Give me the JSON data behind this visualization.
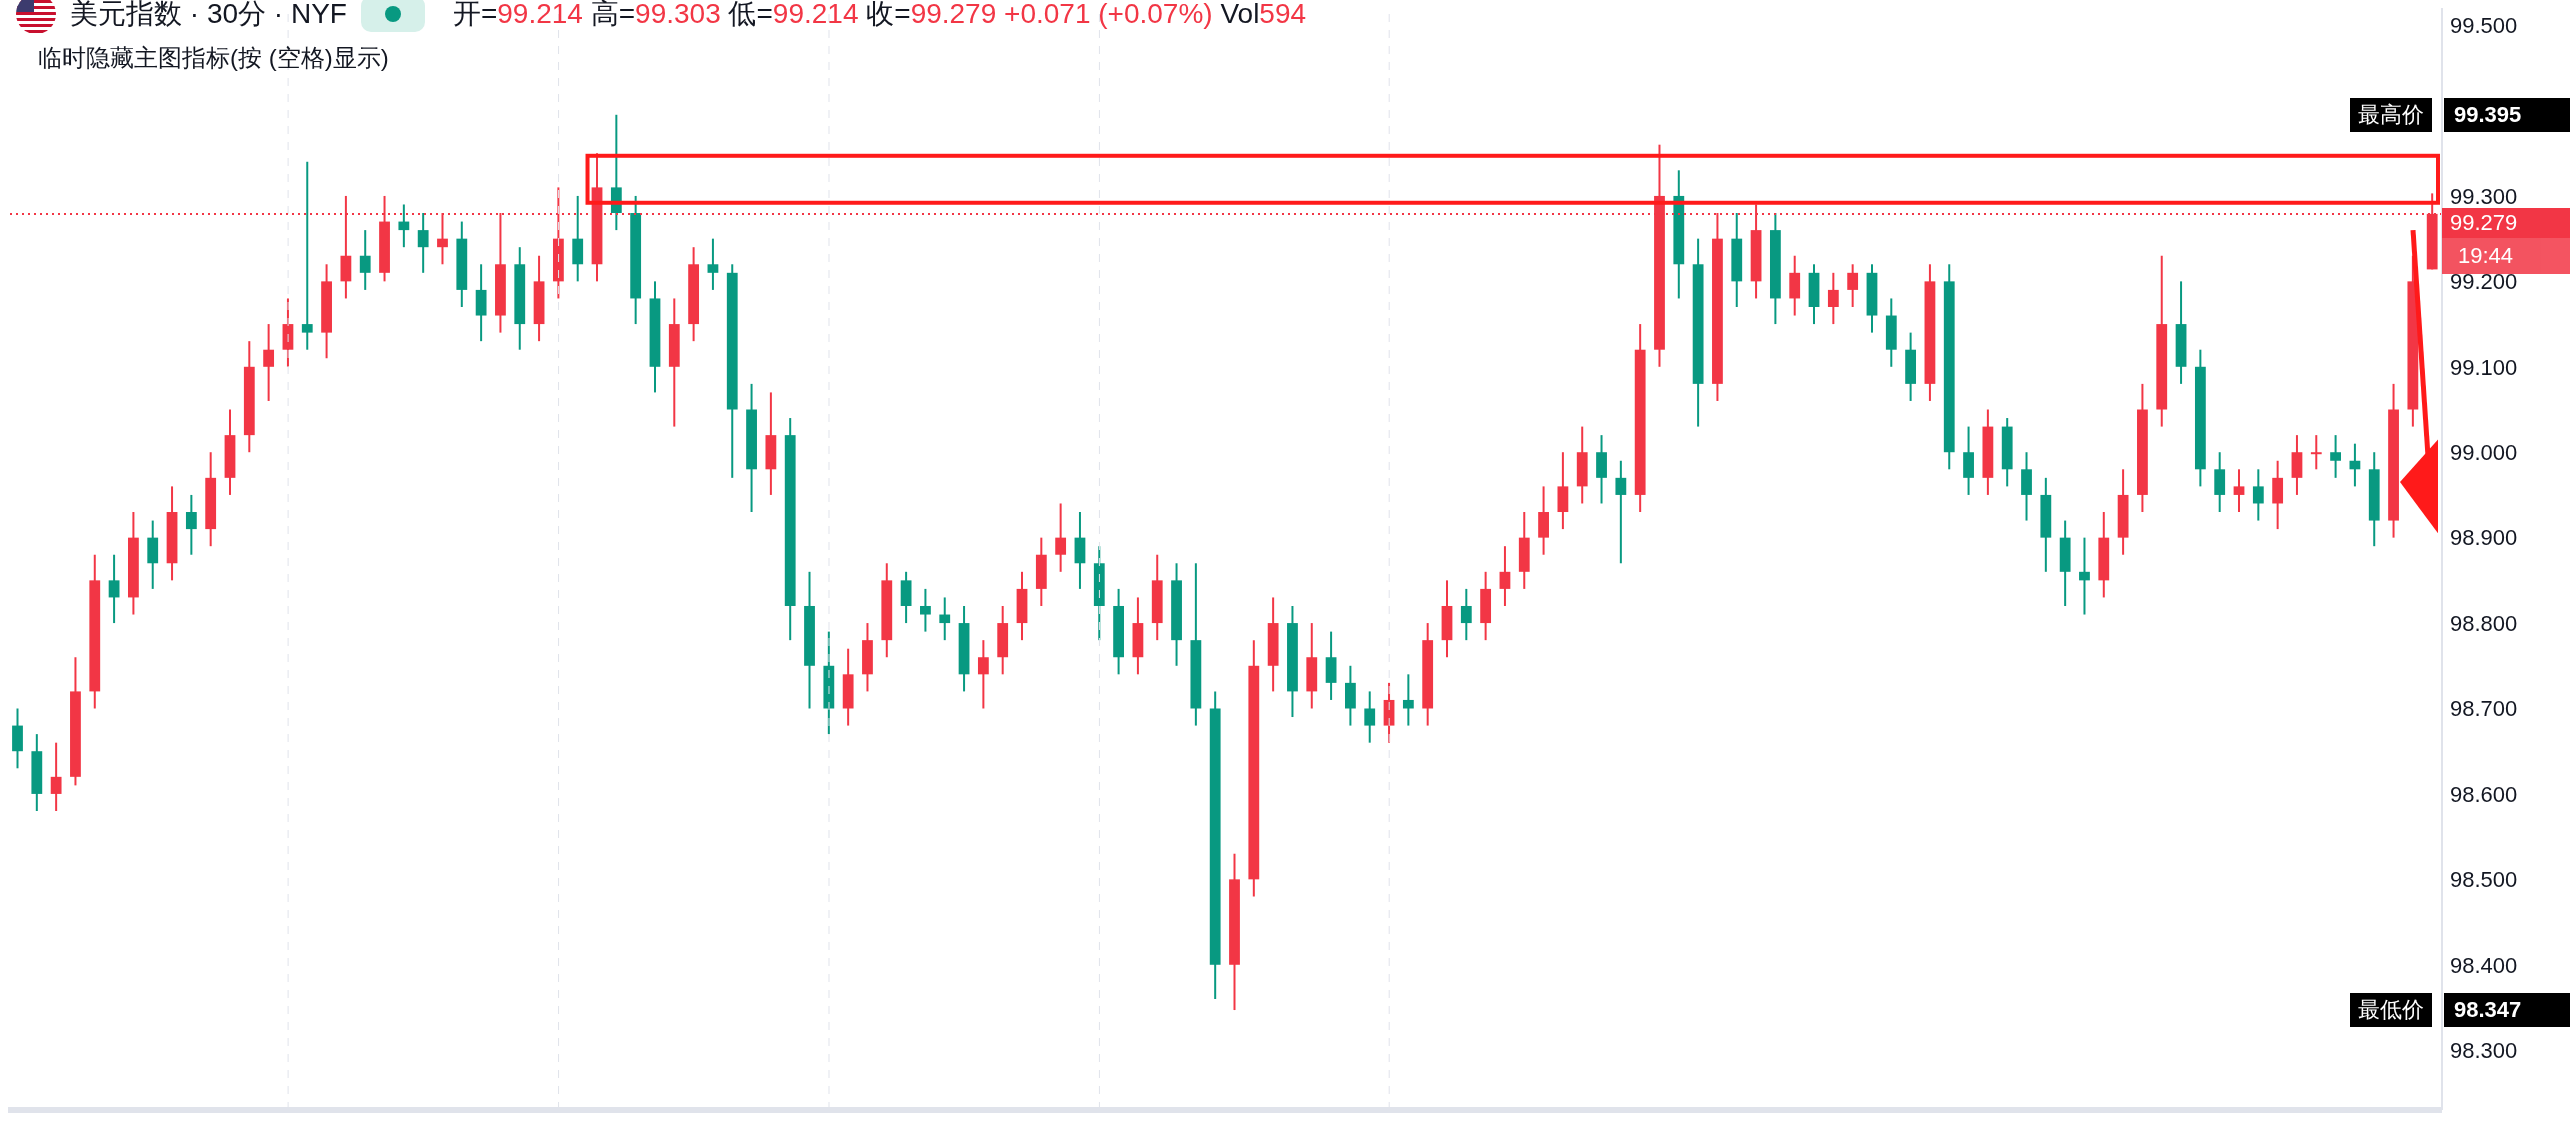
{
  "chart_data": {
    "type": "candlestick",
    "title": "美元指数 · 30分 · NYF",
    "subtitle": "开=99.214 高=99.303 低=99.214 收=99.279 +0.071 (+0.07%) Vol594",
    "annotations": [
      "临时隐藏主图指标(按 (空格)显示)",
      "19:44",
      "最高价",
      "99.395",
      "最低价",
      "98.347"
    ],
    "categories": [
      null,
      null,
      null,
      null,
      null,
      null,
      null,
      null,
      null,
      null,
      null,
      null,
      null,
      null,
      null,
      null,
      null,
      null,
      null,
      null,
      null,
      null,
      null,
      null,
      null,
      null,
      null,
      null,
      null,
      null,
      null,
      null,
      null,
      null,
      null,
      null,
      null,
      null,
      null,
      null,
      null,
      null,
      null,
      null,
      null,
      null,
      null,
      null,
      null,
      null,
      null,
      null,
      null,
      null,
      null,
      null,
      null,
      null,
      null,
      null,
      null,
      null,
      null,
      null,
      null,
      null,
      null,
      null,
      null,
      null,
      null,
      null,
      null,
      null,
      null,
      null,
      null,
      null,
      null,
      null,
      null,
      null,
      null,
      null,
      null,
      null,
      null,
      null,
      null,
      null,
      null,
      null,
      null,
      null,
      null,
      null,
      null,
      null,
      null,
      null,
      null,
      null,
      null,
      null,
      null,
      null,
      null,
      null,
      null,
      null,
      null,
      null,
      null,
      null,
      null,
      null,
      null,
      null,
      null,
      null,
      null,
      null,
      null,
      null,
      null,
      null
    ],
    "ohlc": [
      [
        98.68,
        98.7,
        98.63,
        98.65
      ],
      [
        98.65,
        98.67,
        98.58,
        98.6
      ],
      [
        98.6,
        98.66,
        98.58,
        98.62
      ],
      [
        98.62,
        98.76,
        98.61,
        98.72
      ],
      [
        98.72,
        98.88,
        98.7,
        98.85
      ],
      [
        98.85,
        98.88,
        98.8,
        98.83
      ],
      [
        98.83,
        98.93,
        98.81,
        98.9
      ],
      [
        98.9,
        98.92,
        98.84,
        98.87
      ],
      [
        98.87,
        98.96,
        98.85,
        98.93
      ],
      [
        98.93,
        98.95,
        98.88,
        98.91
      ],
      [
        98.91,
        99.0,
        98.89,
        98.97
      ],
      [
        98.97,
        99.05,
        98.95,
        99.02
      ],
      [
        99.02,
        99.13,
        99.0,
        99.1
      ],
      [
        99.1,
        99.15,
        99.06,
        99.12
      ],
      [
        99.12,
        99.18,
        99.1,
        99.15
      ],
      [
        99.15,
        99.34,
        99.12,
        99.14
      ],
      [
        99.14,
        99.22,
        99.11,
        99.2
      ],
      [
        99.2,
        99.3,
        99.18,
        99.23
      ],
      [
        99.23,
        99.26,
        99.19,
        99.21
      ],
      [
        99.21,
        99.3,
        99.2,
        99.27
      ],
      [
        99.27,
        99.29,
        99.24,
        99.26
      ],
      [
        99.26,
        99.28,
        99.21,
        99.24
      ],
      [
        99.24,
        99.28,
        99.22,
        99.25
      ],
      [
        99.25,
        99.27,
        99.17,
        99.19
      ],
      [
        99.19,
        99.22,
        99.13,
        99.16
      ],
      [
        99.16,
        99.28,
        99.14,
        99.22
      ],
      [
        99.22,
        99.24,
        99.12,
        99.15
      ],
      [
        99.15,
        99.23,
        99.13,
        99.2
      ],
      [
        99.2,
        99.31,
        99.18,
        99.25
      ],
      [
        99.25,
        99.3,
        99.2,
        99.22
      ],
      [
        99.22,
        99.35,
        99.2,
        99.31
      ],
      [
        99.31,
        99.395,
        99.26,
        99.28
      ],
      [
        99.28,
        99.3,
        99.15,
        99.18
      ],
      [
        99.18,
        99.2,
        99.07,
        99.1
      ],
      [
        99.1,
        99.18,
        99.03,
        99.15
      ],
      [
        99.15,
        99.24,
        99.13,
        99.22
      ],
      [
        99.22,
        99.25,
        99.19,
        99.21
      ],
      [
        99.21,
        99.22,
        98.97,
        99.05
      ],
      [
        99.05,
        99.08,
        98.93,
        98.98
      ],
      [
        98.98,
        99.07,
        98.95,
        99.02
      ],
      [
        99.02,
        99.04,
        98.78,
        98.82
      ],
      [
        98.82,
        98.86,
        98.7,
        98.75
      ],
      [
        98.75,
        98.79,
        98.67,
        98.7
      ],
      [
        98.7,
        98.77,
        98.68,
        98.74
      ],
      [
        98.74,
        98.8,
        98.72,
        98.78
      ],
      [
        98.78,
        98.87,
        98.76,
        98.85
      ],
      [
        98.85,
        98.86,
        98.8,
        98.82
      ],
      [
        98.82,
        98.84,
        98.79,
        98.81
      ],
      [
        98.81,
        98.83,
        98.78,
        98.8
      ],
      [
        98.8,
        98.82,
        98.72,
        98.74
      ],
      [
        98.74,
        98.78,
        98.7,
        98.76
      ],
      [
        98.76,
        98.82,
        98.74,
        98.8
      ],
      [
        98.8,
        98.86,
        98.78,
        98.84
      ],
      [
        98.84,
        98.9,
        98.82,
        98.88
      ],
      [
        98.88,
        98.94,
        98.86,
        98.9
      ],
      [
        98.9,
        98.93,
        98.84,
        98.87
      ],
      [
        98.87,
        98.89,
        98.78,
        98.82
      ],
      [
        98.82,
        98.84,
        98.74,
        98.76
      ],
      [
        98.76,
        98.83,
        98.74,
        98.8
      ],
      [
        98.8,
        98.88,
        98.78,
        98.85
      ],
      [
        98.85,
        98.87,
        98.75,
        98.78
      ],
      [
        98.78,
        98.87,
        98.68,
        98.7
      ],
      [
        98.7,
        98.72,
        98.36,
        98.4
      ],
      [
        98.4,
        98.53,
        98.347,
        98.5
      ],
      [
        98.5,
        98.78,
        98.48,
        98.75
      ],
      [
        98.75,
        98.83,
        98.72,
        98.8
      ],
      [
        98.8,
        98.82,
        98.69,
        98.72
      ],
      [
        98.72,
        98.8,
        98.7,
        98.76
      ],
      [
        98.76,
        98.79,
        98.71,
        98.73
      ],
      [
        98.73,
        98.75,
        98.68,
        98.7
      ],
      [
        98.7,
        98.72,
        98.66,
        98.68
      ],
      [
        98.68,
        98.73,
        98.66,
        98.71
      ],
      [
        98.71,
        98.74,
        98.68,
        98.7
      ],
      [
        98.7,
        98.8,
        98.68,
        98.78
      ],
      [
        98.78,
        98.85,
        98.76,
        98.82
      ],
      [
        98.82,
        98.84,
        98.78,
        98.8
      ],
      [
        98.8,
        98.86,
        98.78,
        98.84
      ],
      [
        98.84,
        98.89,
        98.82,
        98.86
      ],
      [
        98.86,
        98.93,
        98.84,
        98.9
      ],
      [
        98.9,
        98.96,
        98.88,
        98.93
      ],
      [
        98.93,
        99.0,
        98.91,
        98.96
      ],
      [
        98.96,
        99.03,
        98.94,
        99.0
      ],
      [
        99.0,
        99.02,
        98.94,
        98.97
      ],
      [
        98.97,
        98.99,
        98.87,
        98.95
      ],
      [
        98.95,
        99.15,
        98.93,
        99.12
      ],
      [
        99.12,
        99.36,
        99.1,
        99.3
      ],
      [
        99.3,
        99.33,
        99.18,
        99.22
      ],
      [
        99.22,
        99.25,
        99.03,
        99.08
      ],
      [
        99.08,
        99.28,
        99.06,
        99.25
      ],
      [
        99.25,
        99.28,
        99.17,
        99.2
      ],
      [
        99.2,
        99.29,
        99.18,
        99.26
      ],
      [
        99.26,
        99.28,
        99.15,
        99.18
      ],
      [
        99.18,
        99.23,
        99.16,
        99.21
      ],
      [
        99.21,
        99.22,
        99.15,
        99.17
      ],
      [
        99.17,
        99.21,
        99.15,
        99.19
      ],
      [
        99.19,
        99.22,
        99.17,
        99.21
      ],
      [
        99.21,
        99.22,
        99.14,
        99.16
      ],
      [
        99.16,
        99.18,
        99.1,
        99.12
      ],
      [
        99.12,
        99.14,
        99.06,
        99.08
      ],
      [
        99.08,
        99.22,
        99.06,
        99.2
      ],
      [
        99.2,
        99.22,
        98.98,
        99.0
      ],
      [
        99.0,
        99.03,
        98.95,
        98.97
      ],
      [
        98.97,
        99.05,
        98.95,
        99.03
      ],
      [
        99.03,
        99.04,
        98.96,
        98.98
      ],
      [
        98.98,
        99.0,
        98.92,
        98.95
      ],
      [
        98.95,
        98.97,
        98.86,
        98.9
      ],
      [
        98.9,
        98.92,
        98.82,
        98.86
      ],
      [
        98.86,
        98.9,
        98.81,
        98.85
      ],
      [
        98.85,
        98.93,
        98.83,
        98.9
      ],
      [
        98.9,
        98.98,
        98.88,
        98.95
      ],
      [
        98.95,
        99.08,
        98.93,
        99.05
      ],
      [
        99.05,
        99.23,
        99.03,
        99.15
      ],
      [
        99.15,
        99.2,
        99.08,
        99.1
      ],
      [
        99.1,
        99.12,
        98.96,
        98.98
      ],
      [
        98.98,
        99.0,
        98.93,
        98.95
      ],
      [
        98.95,
        98.98,
        98.93,
        98.96
      ],
      [
        98.96,
        98.98,
        98.92,
        98.94
      ],
      [
        98.94,
        98.99,
        98.91,
        98.97
      ],
      [
        98.97,
        99.02,
        98.95,
        99.0
      ],
      [
        99.0,
        99.02,
        98.98,
        99.0
      ],
      [
        99.0,
        99.02,
        98.97,
        98.99
      ],
      [
        98.99,
        99.01,
        98.96,
        98.98
      ],
      [
        98.98,
        99.0,
        98.89,
        98.92
      ],
      [
        98.92,
        99.08,
        98.9,
        99.05
      ],
      [
        99.05,
        99.23,
        99.03,
        99.2
      ],
      [
        99.214,
        99.303,
        99.214,
        99.279
      ]
    ],
    "ylim": [
      98.23,
      99.52
    ],
    "yticks": [
      {
        "value": 98.3,
        "label": "98.300"
      },
      {
        "value": 98.4,
        "label": "98.400"
      },
      {
        "value": 98.5,
        "label": "98.500"
      },
      {
        "value": 98.6,
        "label": "98.600"
      },
      {
        "value": 98.7,
        "label": "98.700"
      },
      {
        "value": 98.8,
        "label": "98.800"
      },
      {
        "value": 98.9,
        "label": "98.900"
      },
      {
        "value": 99.0,
        "label": "99.000"
      },
      {
        "value": 99.1,
        "label": "99.100"
      },
      {
        "value": 99.2,
        "label": "99.200"
      },
      {
        "value": 99.3,
        "label": "99.300"
      },
      {
        "value": 99.5,
        "label": "99.500"
      }
    ],
    "ref_lines": [
      {
        "axis": "y",
        "value": 99.279,
        "label": "99.279",
        "color": "#f23645",
        "line_style": "dotted"
      }
    ],
    "tick_labels": "y"
  }
}
